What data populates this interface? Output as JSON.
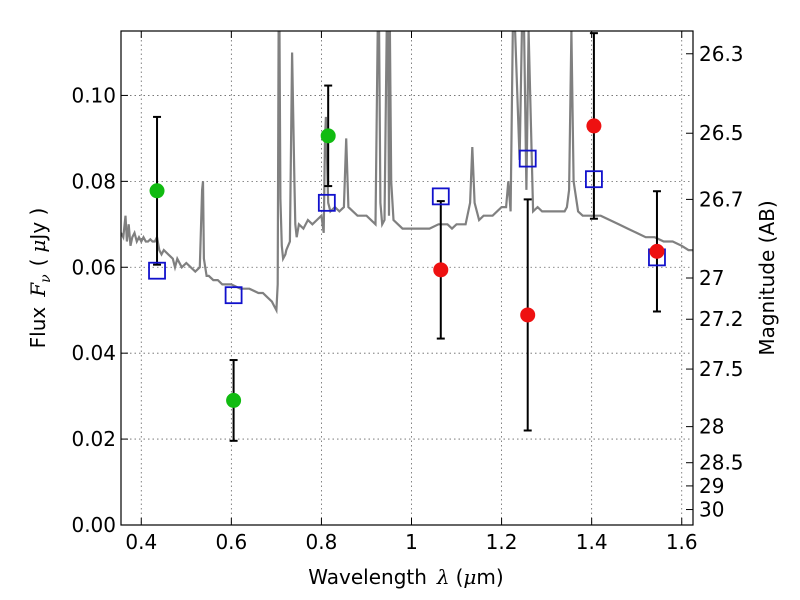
{
  "chart_data": {
    "type": "scatter",
    "xlabel": "Wavelength",
    "xlabel_symbol": "λ",
    "xlabel_unit_open": "(",
    "xlabel_unit_mu": "μ",
    "xlabel_unit_rest": "m)",
    "ylabel": "Flux",
    "ylabel_symbol": "F",
    "ylabel_symbol_sub": "ν",
    "ylabel_unit_open": "(",
    "ylabel_unit_mu": "μ",
    "ylabel_unit_rest": "Jy )",
    "y2label": "Magnitude (AB)",
    "xlim": [
      0.355,
      1.625
    ],
    "ylim": [
      0.0,
      0.115
    ],
    "grid": true,
    "x_ticks": [
      {
        "value": 0.4,
        "label": "0.4"
      },
      {
        "value": 0.6,
        "label": "0.6"
      },
      {
        "value": 0.8,
        "label": "0.8"
      },
      {
        "value": 1.0,
        "label": "1"
      },
      {
        "value": 1.2,
        "label": "1.2"
      },
      {
        "value": 1.4,
        "label": "1.4"
      },
      {
        "value": 1.6,
        "label": "1.6"
      }
    ],
    "y_ticks": [
      {
        "value": 0.0,
        "label": "0.00"
      },
      {
        "value": 0.02,
        "label": "0.02"
      },
      {
        "value": 0.04,
        "label": "0.04"
      },
      {
        "value": 0.06,
        "label": "0.06"
      },
      {
        "value": 0.08,
        "label": "0.08"
      },
      {
        "value": 0.1,
        "label": "0.10"
      }
    ],
    "mag_ticks": [
      {
        "value": 0.1097,
        "label": "26.3"
      },
      {
        "value": 0.0912,
        "label": "26.5"
      },
      {
        "value": 0.0758,
        "label": "26.7"
      },
      {
        "value": 0.0575,
        "label": "27"
      },
      {
        "value": 0.0479,
        "label": "27.2"
      },
      {
        "value": 0.0363,
        "label": "27.5"
      },
      {
        "value": 0.0229,
        "label": "28"
      },
      {
        "value": 0.0145,
        "label": "28.5"
      },
      {
        "value": 0.0091,
        "label": "29"
      },
      {
        "value": 0.0036,
        "label": "30"
      }
    ],
    "colors": {
      "model": "#808080",
      "green": "#11bb11",
      "red": "#ee1111",
      "square": "#1111cc",
      "errorbar": "#000000"
    },
    "model_spectrum": {
      "name": "model",
      "x": [
        0.355,
        0.36,
        0.365,
        0.368,
        0.372,
        0.376,
        0.38,
        0.385,
        0.39,
        0.395,
        0.4,
        0.405,
        0.41,
        0.415,
        0.42,
        0.425,
        0.43,
        0.435,
        0.44,
        0.445,
        0.45,
        0.46,
        0.47,
        0.475,
        0.48,
        0.49,
        0.5,
        0.51,
        0.52,
        0.53,
        0.535,
        0.537,
        0.539,
        0.545,
        0.55,
        0.56,
        0.57,
        0.58,
        0.59,
        0.6,
        0.62,
        0.64,
        0.66,
        0.67,
        0.68,
        0.69,
        0.695,
        0.7,
        0.703,
        0.705,
        0.707,
        0.709,
        0.712,
        0.715,
        0.72,
        0.722,
        0.73,
        0.735,
        0.74,
        0.742,
        0.745,
        0.75,
        0.76,
        0.77,
        0.78,
        0.79,
        0.8,
        0.805,
        0.808,
        0.81,
        0.815,
        0.82,
        0.83,
        0.84,
        0.85,
        0.855,
        0.86,
        0.87,
        0.88,
        0.9,
        0.92,
        0.925,
        0.928,
        0.931,
        0.935,
        0.94,
        0.945,
        0.948,
        0.95,
        0.952,
        0.955,
        0.96,
        0.97,
        0.98,
        1.0,
        1.02,
        1.04,
        1.06,
        1.08,
        1.09,
        1.1,
        1.12,
        1.13,
        1.135,
        1.14,
        1.15,
        1.16,
        1.18,
        1.2,
        1.21,
        1.215,
        1.22,
        1.225,
        1.23,
        1.24,
        1.245,
        1.25,
        1.255,
        1.26,
        1.27,
        1.28,
        1.29,
        1.3,
        1.32,
        1.34,
        1.345,
        1.35,
        1.355,
        1.36,
        1.37,
        1.38,
        1.4,
        1.42,
        1.44,
        1.46,
        1.48,
        1.5,
        1.52,
        1.54,
        1.56,
        1.58,
        1.6,
        1.615,
        1.625
      ],
      "y": [
        0.068,
        0.067,
        0.072,
        0.066,
        0.07,
        0.065,
        0.067,
        0.068,
        0.066,
        0.067,
        0.066,
        0.067,
        0.066,
        0.066,
        0.0665,
        0.066,
        0.066,
        0.067,
        0.064,
        0.063,
        0.064,
        0.063,
        0.062,
        0.06,
        0.062,
        0.06,
        0.061,
        0.06,
        0.059,
        0.06,
        0.078,
        0.08,
        0.062,
        0.058,
        0.058,
        0.057,
        0.057,
        0.056,
        0.056,
        0.056,
        0.055,
        0.055,
        0.054,
        0.054,
        0.053,
        0.052,
        0.051,
        0.05,
        0.056,
        0.115,
        0.115,
        0.076,
        0.065,
        0.062,
        0.063,
        0.064,
        0.066,
        0.11,
        0.08,
        0.07,
        0.067,
        0.07,
        0.069,
        0.071,
        0.07,
        0.071,
        0.072,
        0.068,
        0.09,
        0.095,
        0.075,
        0.073,
        0.074,
        0.073,
        0.074,
        0.09,
        0.074,
        0.073,
        0.072,
        0.072,
        0.07,
        0.115,
        0.115,
        0.075,
        0.07,
        0.071,
        0.115,
        0.115,
        0.072,
        0.115,
        0.08,
        0.071,
        0.07,
        0.069,
        0.069,
        0.069,
        0.069,
        0.07,
        0.07,
        0.069,
        0.07,
        0.07,
        0.075,
        0.088,
        0.075,
        0.071,
        0.072,
        0.072,
        0.074,
        0.074,
        0.08,
        0.073,
        0.115,
        0.115,
        0.085,
        0.115,
        0.115,
        0.078,
        0.115,
        0.073,
        0.074,
        0.073,
        0.073,
        0.073,
        0.073,
        0.074,
        0.078,
        0.115,
        0.08,
        0.073,
        0.072,
        0.072,
        0.072,
        0.071,
        0.07,
        0.069,
        0.068,
        0.067,
        0.067,
        0.066,
        0.066,
        0.065,
        0.064,
        0.064
      ]
    },
    "green_points": [
      {
        "x": 0.435,
        "y": 0.0778,
        "err": 0.0172
      },
      {
        "x": 0.605,
        "y": 0.029,
        "err": 0.0094
      },
      {
        "x": 0.815,
        "y": 0.0906,
        "err": 0.0117
      }
    ],
    "red_points": [
      {
        "x": 1.065,
        "y": 0.0594,
        "err": 0.016
      },
      {
        "x": 1.258,
        "y": 0.0489,
        "err": 0.0269
      },
      {
        "x": 1.405,
        "y": 0.0929,
        "err": 0.0216
      },
      {
        "x": 1.545,
        "y": 0.0637,
        "err": 0.014
      }
    ],
    "model_squares": [
      {
        "x": 0.435,
        "y": 0.0592
      },
      {
        "x": 0.605,
        "y": 0.0535
      },
      {
        "x": 0.812,
        "y": 0.075
      },
      {
        "x": 1.065,
        "y": 0.0765
      },
      {
        "x": 1.258,
        "y": 0.0853
      },
      {
        "x": 1.405,
        "y": 0.0805
      },
      {
        "x": 1.545,
        "y": 0.0623
      }
    ]
  }
}
